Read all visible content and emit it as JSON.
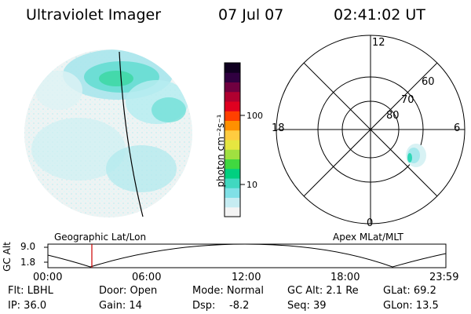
{
  "header": {
    "title": "Ultraviolet Imager",
    "date": "07 Jul 07",
    "time": "02:41:02 UT"
  },
  "colorbar": {
    "label": "photon cm⁻²s⁻¹",
    "ticks": [
      "100",
      "10"
    ],
    "colors": [
      "#f4f4f4",
      "#c6ecf2",
      "#80e0e6",
      "#40d8c0",
      "#00d080",
      "#40d840",
      "#a0e040",
      "#e6e640",
      "#ffcc40",
      "#ff9000",
      "#ff4000",
      "#e00020",
      "#b00030",
      "#700040",
      "#300040",
      "#100020"
    ]
  },
  "polar": {
    "mlt_labels": {
      "top": "12",
      "left": "18",
      "right": "6",
      "bottom": "0"
    },
    "lat_labels": [
      "60",
      "70",
      "80"
    ]
  },
  "timeline": {
    "y_axis_label": "GC Alt",
    "y_ticks": [
      "9.0",
      "1.8"
    ],
    "left_title": "Geographic Lat/Lon",
    "right_title": "Apex MLat/MLT",
    "x_ticks": [
      "00:00",
      "06:00",
      "12:00",
      "18:00",
      "23:59"
    ],
    "marker_color": "#cc0000"
  },
  "status": {
    "flt": "Flt: LBHL",
    "ip": "IP: 36.0",
    "door": "Door: Open",
    "gain": "Gain: 14",
    "mode": "Mode: Normal",
    "dsp_label": "Dsp:",
    "dsp_value": "-8.2",
    "gcalt": "GC Alt: 2.1 Re",
    "seq": "Seq: 39",
    "glat": "GLat: 69.2",
    "glon": "GLon: 13.5"
  }
}
